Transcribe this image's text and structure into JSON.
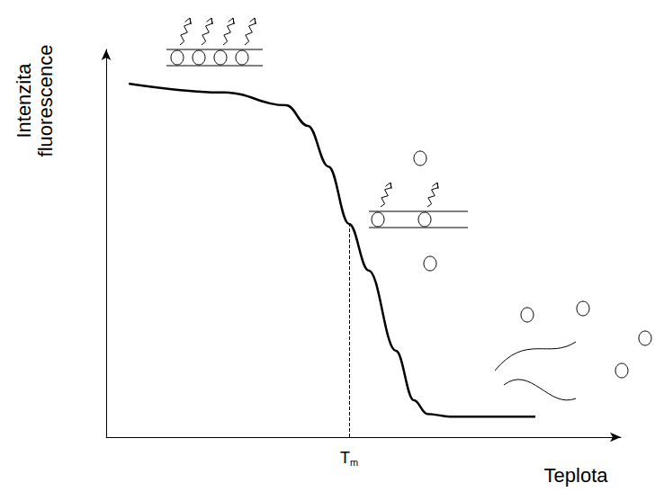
{
  "chart_data": {
    "type": "line",
    "y_label": "Intenzita fluorescence",
    "x_label": "Teplota",
    "x": [
      4.4,
      23,
      35,
      39.2,
      43.2,
      47.2,
      51,
      56.3,
      59.8,
      62.4,
      66.8,
      83.4
    ],
    "values": [
      91.2,
      88.9,
      85.6,
      80.3,
      69.8,
      55,
      43,
      22.3,
      9.5,
      6,
      5.3,
      5.3
    ],
    "xlim": [
      0,
      100
    ],
    "ylim": [
      0,
      100
    ],
    "tick_labels": false,
    "color": "#000000",
    "annotations": [
      {
        "text": "T",
        "subscript": "m",
        "x": 47.2,
        "y": 55
      }
    ]
  }
}
